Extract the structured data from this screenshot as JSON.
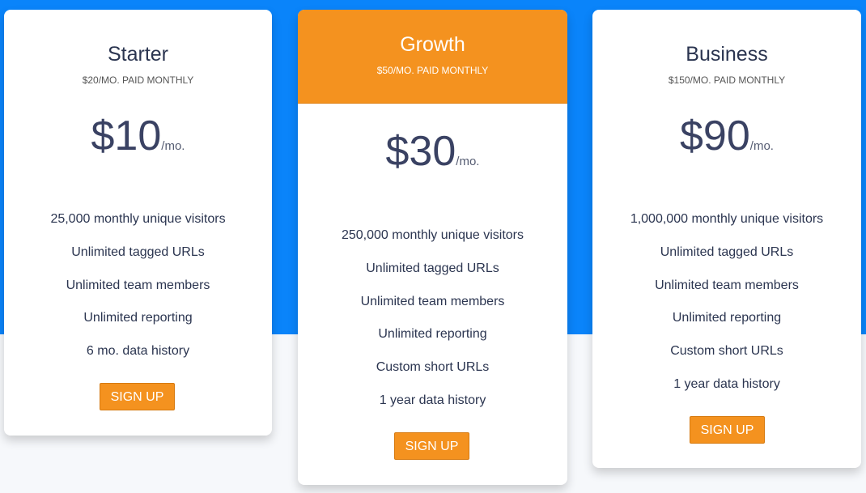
{
  "colors": {
    "background_top": "#0a84fa",
    "background_bottom": "#f6f8fb",
    "accent": "#f4921f",
    "text": "#2b3550"
  },
  "plans": [
    {
      "name": "Starter",
      "subtitle": "$20/MO. PAID MONTHLY",
      "price": "$10",
      "per": "/mo.",
      "features": [
        "25,000 monthly unique visitors",
        "Unlimited tagged URLs",
        "Unlimited team members",
        "Unlimited reporting",
        "6 mo. data history"
      ],
      "button": "SIGN UP"
    },
    {
      "name": "Growth",
      "subtitle": "$50/MO. PAID MONTHLY",
      "price": "$30",
      "per": "/mo.",
      "features": [
        "250,000 monthly unique visitors",
        "Unlimited tagged URLs",
        "Unlimited team members",
        "Unlimited reporting",
        "Custom short URLs",
        "1 year data history"
      ],
      "button": "SIGN UP",
      "highlighted": true
    },
    {
      "name": "Business",
      "subtitle": "$150/MO. PAID MONTHLY",
      "price": "$90",
      "per": "/mo.",
      "features": [
        "1,000,000 monthly unique visitors",
        "Unlimited tagged URLs",
        "Unlimited team members",
        "Unlimited reporting",
        "Custom short URLs",
        "1 year data history"
      ],
      "button": "SIGN UP"
    }
  ]
}
